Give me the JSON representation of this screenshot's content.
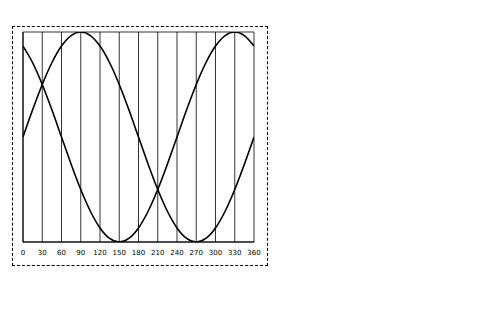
{
  "chart_data": {
    "type": "line",
    "x": [
      0,
      15,
      30,
      45,
      60,
      75,
      90,
      105,
      120,
      135,
      150,
      165,
      180,
      195,
      210,
      225,
      240,
      255,
      270,
      285,
      300,
      315,
      330,
      345,
      360
    ],
    "series": [
      {
        "color": "#000000",
        "values": [
          0,
          0.259,
          0.5,
          0.707,
          0.866,
          0.966,
          1,
          0.966,
          0.866,
          0.707,
          0.5,
          0.259,
          0,
          -0.259,
          -0.5,
          -0.707,
          -0.866,
          -0.966,
          -1,
          -0.966,
          -0.866,
          -0.707,
          -0.5,
          -0.259,
          0
        ]
      },
      {
        "color": "#000000",
        "values": [
          0.866,
          0.707,
          0.5,
          0.259,
          0,
          -0.259,
          -0.5,
          -0.707,
          -0.866,
          -0.966,
          -1,
          -0.966,
          -0.866,
          -0.707,
          -0.5,
          -0.259,
          0,
          0.259,
          0.5,
          0.707,
          0.866,
          0.966,
          1,
          0.966,
          0.866
        ]
      }
    ],
    "xlim": [
      0,
      360
    ],
    "xticks": [
      0,
      30,
      60,
      90,
      120,
      150,
      180,
      210,
      240,
      270,
      300,
      330,
      360
    ],
    "ylim": [
      -1,
      1
    ],
    "yticks": [
      -1,
      0,
      1
    ],
    "grid": true,
    "tick_labels": "x"
  }
}
